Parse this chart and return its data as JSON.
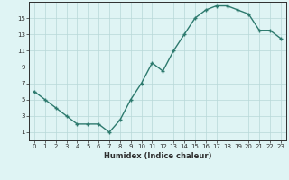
{
  "x": [
    0,
    1,
    2,
    3,
    4,
    5,
    6,
    7,
    8,
    9,
    10,
    11,
    12,
    13,
    14,
    15,
    16,
    17,
    18,
    19,
    20,
    21,
    22,
    23
  ],
  "y": [
    6,
    5,
    4,
    3,
    2,
    2,
    2,
    1,
    2.5,
    5,
    7,
    9.5,
    8.5,
    11,
    13,
    15,
    16,
    16.5,
    16.5,
    16,
    15.5,
    13.5,
    13.5,
    12.5
  ],
  "line_color": "#2d7a6e",
  "marker": "+",
  "marker_size": 3,
  "background_color": "#dff4f4",
  "grid_color": "#b8d8d8",
  "xlabel": "Humidex (Indice chaleur)",
  "xlim": [
    -0.5,
    23.5
  ],
  "ylim": [
    0,
    17
  ],
  "yticks": [
    1,
    3,
    5,
    7,
    9,
    11,
    13,
    15
  ],
  "xticks": [
    0,
    1,
    2,
    3,
    4,
    5,
    6,
    7,
    8,
    9,
    10,
    11,
    12,
    13,
    14,
    15,
    16,
    17,
    18,
    19,
    20,
    21,
    22,
    23
  ],
  "xtick_labels": [
    "0",
    "1",
    "2",
    "3",
    "4",
    "5",
    "6",
    "7",
    "8",
    "9",
    "10",
    "11",
    "12",
    "13",
    "14",
    "15",
    "16",
    "17",
    "18",
    "19",
    "20",
    "21",
    "22",
    "23"
  ],
  "tick_color": "#2d2d2d",
  "axis_color": "#2d2d2d",
  "line_width": 1.0
}
